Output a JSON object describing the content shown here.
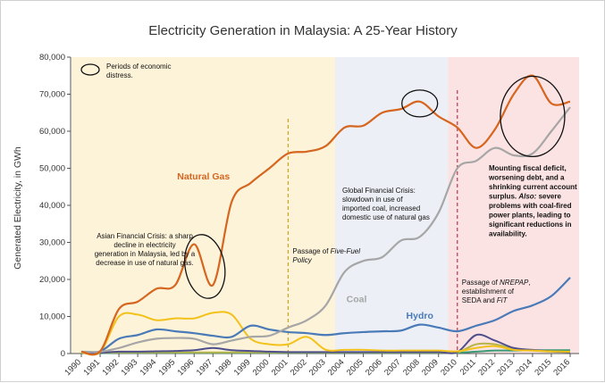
{
  "chart_data": {
    "type": "line",
    "title": "Electricity Generation in Malaysia: A 25-Year History",
    "ylabel": "Generated Electricity, in GWh",
    "xlabel": "",
    "ylim": [
      0,
      80000
    ],
    "yticks": [
      0,
      10000,
      20000,
      30000,
      40000,
      50000,
      60000,
      70000,
      80000
    ],
    "ytick_labels": [
      "0",
      "10,000",
      "20,000",
      "30,000",
      "40,000",
      "50,000",
      "60,000",
      "70,000",
      "80,000"
    ],
    "x": [
      "1990",
      "1991",
      "1992",
      "1993",
      "1994",
      "1995",
      "1996",
      "1997",
      "1998",
      "1999",
      "2000",
      "2001",
      "2002",
      "2003",
      "2004",
      "2005",
      "2006",
      "2007",
      "2008",
      "2009",
      "2010",
      "2011",
      "2012",
      "2013",
      "2014",
      "2015",
      "2016"
    ],
    "grid": false,
    "series": [
      {
        "name": "Natural Gas",
        "color": "#d6651f",
        "label_at": [
          2.2,
          0.7
        ],
        "values": [
          500,
          600,
          12000,
          14000,
          17500,
          18500,
          29500,
          18500,
          41000,
          46000,
          50000,
          54000,
          54500,
          56000,
          61000,
          61500,
          65000,
          66000,
          68000,
          64000,
          61000,
          55500,
          60500,
          70000,
          75000,
          67500,
          68000
        ]
      },
      {
        "name": "Coal",
        "color": "#a6a6a6",
        "label_at": [
          0.35,
          0.4
        ],
        "values": [
          500,
          500,
          1500,
          3000,
          4000,
          4200,
          4000,
          2500,
          3500,
          4500,
          4800,
          7000,
          9000,
          13000,
          22000,
          25000,
          26000,
          30500,
          31500,
          38000,
          50000,
          52000,
          55500,
          53500,
          54000,
          60000,
          66500
        ]
      },
      {
        "name": "Hydro",
        "color": "#4a7ab8",
        "label_at": [
          0.25,
          0.42
        ],
        "values": [
          500,
          600,
          4000,
          5000,
          6500,
          6000,
          5500,
          4800,
          4500,
          7500,
          6500,
          5800,
          5500,
          5000,
          5500,
          5800,
          6000,
          6200,
          7800,
          7000,
          6000,
          7500,
          9000,
          11500,
          13000,
          15500,
          20500
        ]
      },
      {
        "name": "",
        "color": "#f2c21a",
        "values": [
          300,
          400,
          10000,
          10500,
          9000,
          9500,
          9500,
          11000,
          10500,
          4000,
          2500,
          2500,
          4500,
          1000,
          1000,
          1000,
          800,
          800,
          800,
          800,
          600,
          1500,
          2000,
          1000,
          800,
          600,
          500
        ]
      },
      {
        "name": "",
        "color": "#4e4e8c",
        "values": [
          200,
          200,
          500,
          500,
          600,
          700,
          900,
          1500,
          900,
          700,
          500,
          400,
          400,
          400,
          400,
          400,
          400,
          400,
          400,
          400,
          400,
          5000,
          3500,
          1500,
          1000,
          600,
          400
        ]
      },
      {
        "name": "",
        "color": "#b5b54a",
        "values": [
          200,
          200,
          300,
          300,
          300,
          300,
          300,
          300,
          300,
          300,
          300,
          300,
          300,
          300,
          300,
          300,
          300,
          300,
          300,
          300,
          300,
          2500,
          2500,
          1200,
          800,
          500,
          400
        ]
      },
      {
        "name": "",
        "color": "#3a9a76",
        "values": [
          100,
          100,
          200,
          200,
          200,
          200,
          200,
          200,
          200,
          200,
          200,
          200,
          200,
          200,
          200,
          200,
          200,
          200,
          200,
          200,
          200,
          500,
          800,
          800,
          900,
          900,
          900
        ]
      }
    ],
    "shaded_periods": [
      {
        "from": "1990",
        "to": "2003",
        "color": "#fdf3d9"
      },
      {
        "from": "2003",
        "to": "2009",
        "color": "#eceff5"
      },
      {
        "from": "2009",
        "to": "2016",
        "color": "#fbe3e3"
      }
    ],
    "vertical_markers": [
      {
        "at": "2001",
        "color": "#d4a017",
        "label": "Passage of Five-Fuel Policy",
        "label_lines": [
          "Passage of |Five-Fuel|",
          "|Policy|"
        ]
      },
      {
        "at": "2010",
        "color": "#c2344a",
        "label": "Passage of NREPAP, establishment of SEDA and FiT",
        "label_lines": [
          "Passage of |NREPAP|,",
          "establishment of",
          "SEDA and |FiT|"
        ]
      }
    ],
    "annotations": [
      {
        "id": "legend",
        "lines": [
          "Periods of economic",
          "distress."
        ],
        "bold": false
      },
      {
        "id": "asian",
        "lines": [
          "Asian Financial Crisis: a sharp",
          "decline in electricity",
          "generation in Malaysia, led by a",
          "decrease in use of natural gas."
        ],
        "bold": false
      },
      {
        "id": "global",
        "lines": [
          "Global Financial Crisis:",
          "slowdown in use of",
          "imported coal, increased",
          "domestic use of natural gas"
        ],
        "bold": false
      },
      {
        "id": "fiscal",
        "lines": [
          "Mounting fiscal deficit,",
          "worsening debt, and a",
          "shrinking current account",
          "surplus. Also: severe",
          "problems with coal-fired",
          "power plants, leading to",
          "significant reductions in",
          "availability."
        ],
        "bold": true
      }
    ],
    "ellipses": [
      {
        "at_x": "1996",
        "at_y": 23500
      },
      {
        "at_x": "2008",
        "at_y": 67500
      },
      {
        "at_x": "2014",
        "at_y": 64000
      }
    ]
  }
}
